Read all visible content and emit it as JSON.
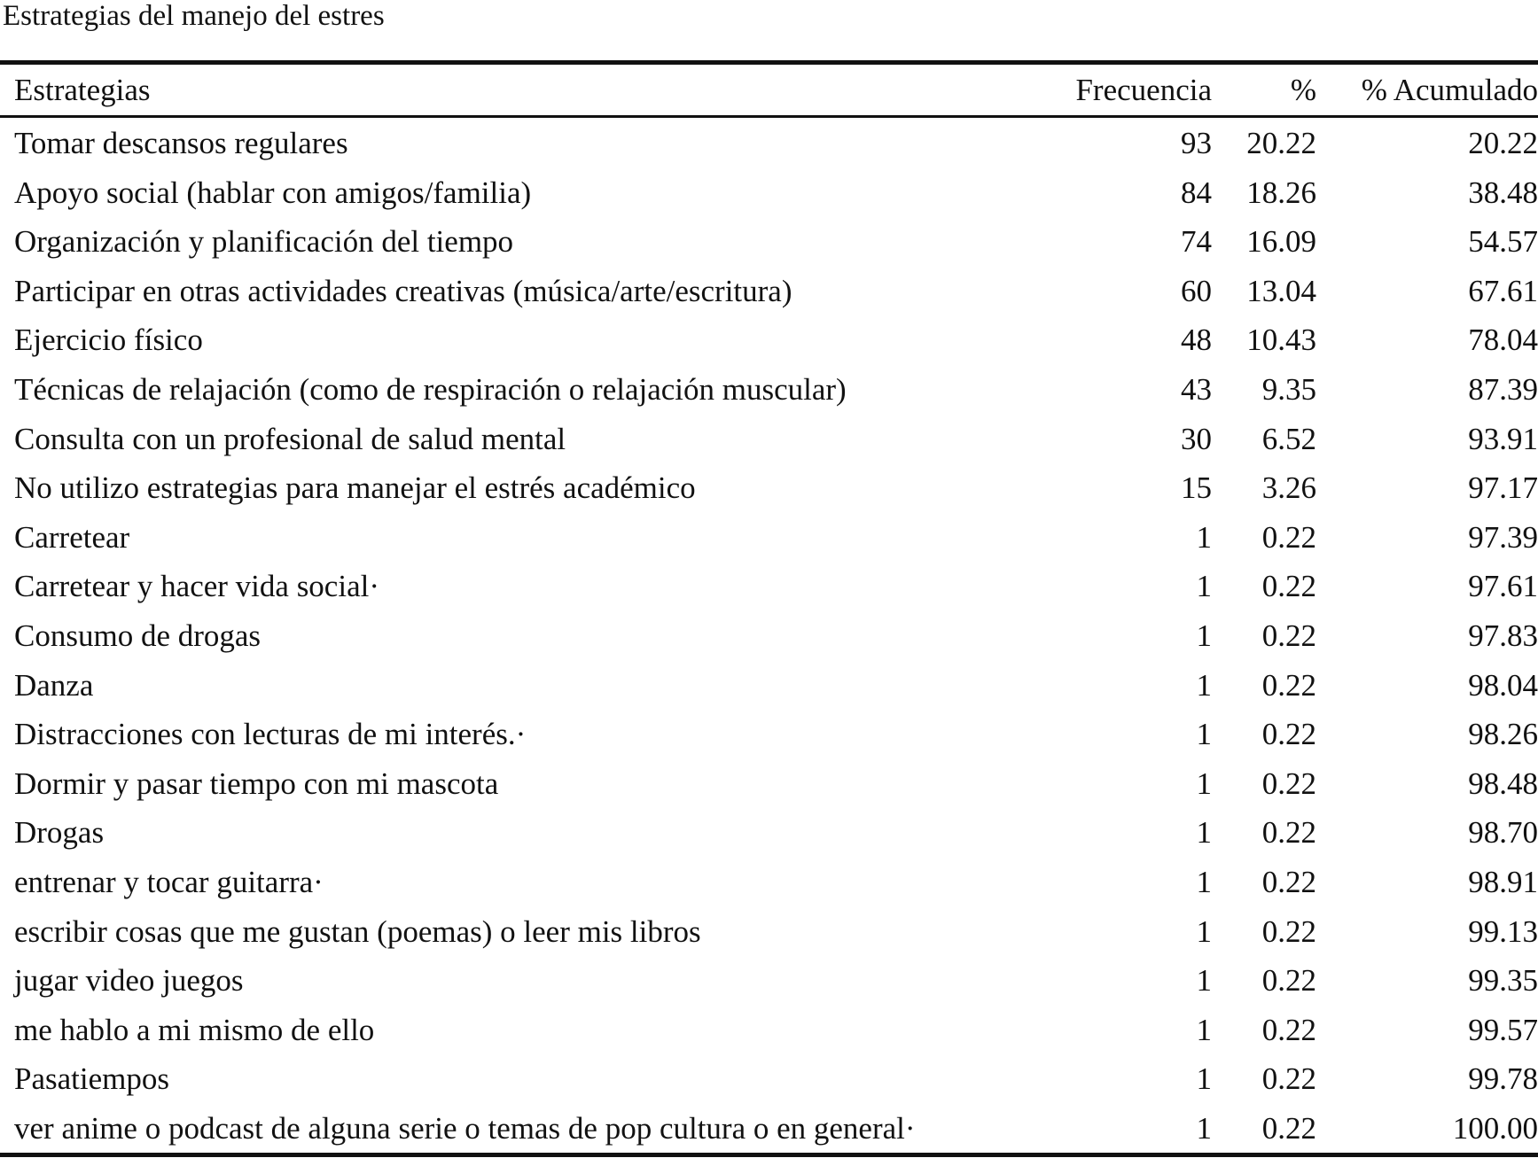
{
  "caption": "Estrategias del manejo del estres",
  "table": {
    "headers": [
      "Estrategias",
      "Frecuencia",
      "%",
      "% Acumulado"
    ],
    "rows": [
      [
        "Tomar descansos regulares",
        "93",
        "20.22",
        "20.22"
      ],
      [
        "Apoyo social (hablar con amigos/familia)",
        "84",
        "18.26",
        "38.48"
      ],
      [
        "Organización y planificación del tiempo",
        "74",
        "16.09",
        "54.57"
      ],
      [
        "Participar en otras actividades creativas (música/arte/escritura)",
        "60",
        "13.04",
        "67.61"
      ],
      [
        "Ejercicio físico",
        "48",
        "10.43",
        "78.04"
      ],
      [
        "Técnicas de relajación (como de respiración o relajación muscular)",
        "43",
        "9.35",
        "87.39"
      ],
      [
        "Consulta con un profesional de salud mental",
        "30",
        "6.52",
        "93.91"
      ],
      [
        "No utilizo estrategias para manejar el estrés académico",
        "15",
        "3.26",
        "97.17"
      ],
      [
        "Carretear",
        "1",
        "0.22",
        "97.39"
      ],
      [
        "Carretear y hacer vida social·",
        "1",
        "0.22",
        "97.61"
      ],
      [
        "Consumo de drogas",
        "1",
        "0.22",
        "97.83"
      ],
      [
        "Danza",
        "1",
        "0.22",
        "98.04"
      ],
      [
        "Distracciones con lecturas de mi interés.·",
        "1",
        "0.22",
        "98.26"
      ],
      [
        "Dormir y pasar tiempo con mi mascota",
        "1",
        "0.22",
        "98.48"
      ],
      [
        "Drogas",
        "1",
        "0.22",
        "98.70"
      ],
      [
        "entrenar y tocar guitarra·",
        "1",
        "0.22",
        "98.91"
      ],
      [
        "escribir cosas que me gustan (poemas) o leer mis libros",
        "1",
        "0.22",
        "99.13"
      ],
      [
        "jugar video juegos",
        "1",
        "0.22",
        "99.35"
      ],
      [
        "me hablo a mi mismo de ello",
        "1",
        "0.22",
        "99.57"
      ],
      [
        "Pasatiempos",
        "1",
        "0.22",
        "99.78"
      ],
      [
        "ver anime o podcast de alguna serie o temas de pop cultura o en general·",
        "1",
        "0.22",
        "100.00"
      ]
    ]
  }
}
